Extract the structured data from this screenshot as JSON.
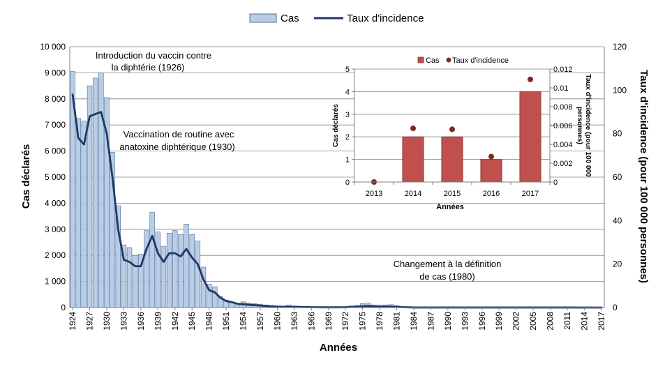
{
  "chart_data": [
    {
      "type": "bar",
      "title": "",
      "legend": {
        "position": "top",
        "items": [
          "Cas",
          "Taux d'incidence"
        ]
      },
      "xlabel": "Années",
      "ylabel": "Cas déclarés",
      "y2label": "Taux d'incidence (pour 100 000 personnes)",
      "ylim": [
        0,
        10000
      ],
      "y2lim": [
        0,
        120
      ],
      "ytick_labels": [
        "0",
        "1 000",
        "2 000",
        "3 000",
        "4 000",
        "5 000",
        "6 000",
        "7 000",
        "8 000",
        "9 000",
        "10 000"
      ],
      "y2tick_labels": [
        "0",
        "20",
        "40",
        "60",
        "80",
        "100",
        "120"
      ],
      "year_start": 1924,
      "year_end": 2017,
      "tick_years": [
        1924,
        1927,
        1930,
        1933,
        1936,
        1939,
        1942,
        1945,
        1948,
        1951,
        1954,
        1957,
        1960,
        1963,
        1966,
        1969,
        1972,
        1975,
        1978,
        1981,
        1984,
        1987,
        1990,
        1993,
        1996,
        1999,
        2002,
        2005,
        2008,
        2011,
        2014,
        2017
      ],
      "series": [
        {
          "name": "Cas",
          "kind": "bar",
          "values": [
            9050,
            7250,
            7150,
            8500,
            8800,
            9000,
            8050,
            5950,
            3900,
            2400,
            2300,
            2000,
            2050,
            2950,
            3650,
            2900,
            2350,
            2850,
            2950,
            2800,
            3200,
            2800,
            2550,
            1550,
            900,
            800,
            420,
            280,
            200,
            150,
            220,
            170,
            150,
            130,
            100,
            80,
            60,
            50,
            100,
            60,
            50,
            40,
            30,
            30,
            20,
            20,
            20,
            20,
            30,
            60,
            80,
            150,
            170,
            100,
            90,
            100,
            110,
            70,
            40,
            20,
            5,
            5,
            5,
            5,
            5,
            5,
            5,
            5,
            5,
            5,
            5,
            5,
            5,
            5,
            5,
            5,
            5,
            5,
            5,
            5,
            5,
            5,
            5,
            5,
            5,
            5,
            5,
            5,
            5,
            0,
            2,
            2,
            1,
            4
          ]
        },
        {
          "name": "Taux d'incidence",
          "kind": "line",
          "values": [
            98,
            78,
            75,
            88,
            89,
            90,
            80,
            60,
            36,
            22,
            21,
            19,
            19,
            27,
            33,
            25,
            21,
            25,
            25,
            23.5,
            27,
            23,
            20,
            13,
            8,
            7,
            4.5,
            3,
            2.5,
            1.7,
            1.5,
            1.3,
            1.1,
            0.9,
            0.7,
            0.5,
            0.4,
            0.35,
            0.3,
            0.3,
            0.25,
            0.2,
            0.15,
            0.12,
            0.1,
            0.1,
            0.1,
            0.1,
            0.12,
            0.3,
            0.4,
            0.6,
            0.7,
            0.5,
            0.4,
            0.45,
            0.45,
            0.3,
            0.15,
            0.1,
            0.02,
            0.02,
            0.02,
            0.02,
            0.02,
            0.02,
            0.02,
            0.02,
            0.02,
            0.02,
            0.02,
            0.02,
            0.02,
            0.02,
            0.02,
            0.02,
            0.02,
            0.02,
            0.02,
            0.02,
            0.02,
            0.02,
            0.02,
            0.02,
            0.02,
            0.02,
            0.02,
            0.02,
            0.02,
            0,
            0.005,
            0.005,
            0.003,
            0.01
          ]
        }
      ],
      "annotations": [
        "Introduction du vaccin contre\nla diphtérie (1926)",
        "Vaccination de routine avec\nanatoxine diphtérique (1930)",
        "Changement à la définition\nde cas (1980)"
      ]
    },
    {
      "type": "bar",
      "title": "",
      "legend": {
        "position": "top",
        "items": [
          "Cas",
          "Taux d'incidence"
        ]
      },
      "categories": [
        "2013",
        "2014",
        "2015",
        "2016",
        "2017"
      ],
      "xlabel": "Années",
      "ylabel": "Cas déclarés",
      "y2label": "Taux d'incidence (pour 100 000 personnes)",
      "ylim": [
        0,
        5
      ],
      "y2lim": [
        0,
        0.012
      ],
      "ytick_labels": [
        "0",
        "1",
        "2",
        "3",
        "4",
        "5"
      ],
      "y2tick_labels": [
        "0",
        "0.002",
        "0.004",
        "0.006",
        "0.008",
        "0.01",
        "0.012"
      ],
      "series": [
        {
          "name": "Cas",
          "kind": "bar",
          "values": [
            0,
            2,
            2,
            1,
            4
          ]
        },
        {
          "name": "Taux d'incidence",
          "kind": "scatter",
          "values": [
            0,
            0.0057,
            0.0056,
            0.0027,
            0.0109
          ]
        }
      ]
    }
  ],
  "colors": {
    "main_bar_fill": "#b9cde5",
    "main_bar_stroke": "#4f6e9d",
    "main_line": "#1f3864",
    "inset_bar_fill": "#c0504d",
    "inset_bar_stroke": "#8c2d2a",
    "inset_marker": "#7b2a20",
    "gridline": "#808080"
  }
}
